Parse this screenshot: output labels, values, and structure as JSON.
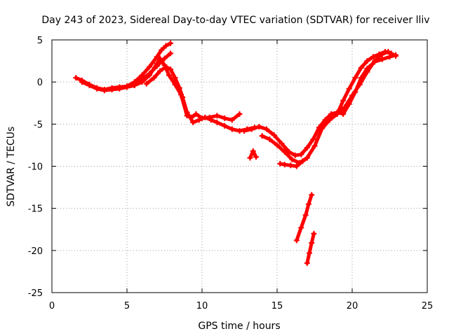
{
  "chart_data": {
    "type": "scatter",
    "title": "Day 243 of 2023, Sidereal Day-to-day VTEC variation (SDTVAR) for receiver lliv",
    "xlabel": "GPS time / hours",
    "ylabel": "SDTVAR / TECUs",
    "xlim": [
      0,
      25
    ],
    "ylim": [
      -25,
      5
    ],
    "xticks": [
      "0",
      "5",
      "10",
      "15",
      "20",
      "25"
    ],
    "yticks": [
      "5",
      "0",
      "-5",
      "-10",
      "-15",
      "-20",
      "-25"
    ],
    "grid": true,
    "legend": "none",
    "marker_color": "#ff0000",
    "series": [
      {
        "x": [
          1.6,
          2.0,
          2.5,
          3.0,
          3.5,
          4.0,
          4.5,
          5.0,
          5.5,
          6.0,
          6.5,
          7.0,
          7.3,
          7.6,
          7.9
        ],
        "y": [
          0.5,
          0.2,
          -0.3,
          -0.7,
          -0.9,
          -0.7,
          -0.6,
          -0.5,
          0.0,
          0.8,
          1.8,
          3.0,
          3.8,
          4.3,
          4.6
        ]
      },
      {
        "x": [
          2.0,
          2.5,
          3.0,
          3.5,
          4.0,
          4.5,
          5.0,
          5.5,
          6.0,
          6.5,
          7.0,
          7.5,
          7.9
        ],
        "y": [
          0.0,
          -0.4,
          -0.8,
          -1.0,
          -0.9,
          -0.8,
          -0.6,
          -0.4,
          0.3,
          1.0,
          1.9,
          2.8,
          3.4
        ]
      },
      {
        "x": [
          5.5,
          6.0,
          6.5,
          7.0,
          7.2,
          7.5,
          7.8,
          8.2,
          8.6,
          9.0,
          9.3,
          9.6,
          10.0,
          10.5,
          11.0,
          11.5,
          12.0,
          12.5
        ],
        "y": [
          -0.4,
          0.0,
          0.8,
          2.2,
          2.8,
          2.0,
          0.8,
          -0.3,
          -1.5,
          -4.0,
          -4.2,
          -3.8,
          -4.3,
          -4.2,
          -4.0,
          -4.3,
          -4.5,
          -3.8
        ]
      },
      {
        "x": [
          6.3,
          6.8,
          7.2,
          7.6,
          7.9,
          8.2,
          8.5,
          8.7,
          9.0,
          9.4,
          9.8,
          10.2,
          10.6,
          11.0,
          11.5,
          12.0,
          12.5,
          13.0,
          13.5
        ],
        "y": [
          -0.2,
          0.5,
          1.3,
          1.8,
          1.5,
          0.5,
          -0.7,
          -1.8,
          -3.6,
          -4.8,
          -4.5,
          -4.2,
          -4.5,
          -4.8,
          -5.2,
          -5.6,
          -5.8,
          -5.6,
          -5.4
        ]
      },
      {
        "x": [
          12.8,
          13.3,
          13.8,
          14.3,
          14.8,
          15.3,
          15.8,
          16.2,
          16.6,
          17.0,
          17.4,
          17.8,
          18.2,
          18.6,
          19.0,
          19.4,
          19.8,
          20.2,
          20.6,
          21.0,
          21.5,
          22.0,
          22.5,
          22.9
        ],
        "y": [
          -5.8,
          -5.6,
          -5.3,
          -5.6,
          -6.3,
          -7.3,
          -8.3,
          -8.7,
          -8.6,
          -7.8,
          -6.8,
          -5.4,
          -4.5,
          -3.8,
          -3.6,
          -3.8,
          -2.6,
          -1.2,
          0.5,
          1.6,
          2.4,
          2.7,
          3.0,
          3.2
        ]
      },
      {
        "x": [
          14.0,
          14.5,
          15.0,
          15.5,
          16.0,
          16.5,
          17.0,
          17.5,
          18.0,
          18.5,
          19.0,
          19.5,
          20.0,
          20.5,
          21.0,
          21.5,
          22.0,
          22.4
        ],
        "y": [
          -6.4,
          -6.8,
          -7.5,
          -8.3,
          -9.2,
          -9.6,
          -9.0,
          -7.6,
          -5.5,
          -4.5,
          -3.8,
          -3.0,
          -1.6,
          -0.3,
          1.2,
          2.5,
          3.3,
          3.6
        ]
      },
      {
        "x": [
          19.0,
          19.4,
          19.8,
          20.2,
          20.6,
          21.0,
          21.4,
          21.8,
          22.2,
          22.6,
          22.9
        ],
        "y": [
          -3.8,
          -2.2,
          -0.8,
          0.5,
          1.7,
          2.5,
          3.0,
          3.3,
          3.6,
          3.4,
          3.1
        ]
      },
      {
        "x": [
          13.2,
          13.4,
          13.6
        ],
        "y": [
          -9.0,
          -8.2,
          -8.9
        ]
      },
      {
        "x": [
          15.2,
          15.5,
          15.9,
          16.3,
          16.7,
          17.0
        ],
        "y": [
          -9.7,
          -9.8,
          -9.9,
          -10.0,
          -9.4,
          -9.0
        ]
      },
      {
        "x": [
          16.3,
          16.6,
          16.9,
          17.1,
          17.3
        ],
        "y": [
          -18.8,
          -17.3,
          -15.8,
          -14.5,
          -13.4
        ]
      },
      {
        "x": [
          17.0,
          17.15,
          17.3,
          17.45
        ],
        "y": [
          -21.5,
          -20.3,
          -19.1,
          -18.0
        ]
      }
    ]
  }
}
